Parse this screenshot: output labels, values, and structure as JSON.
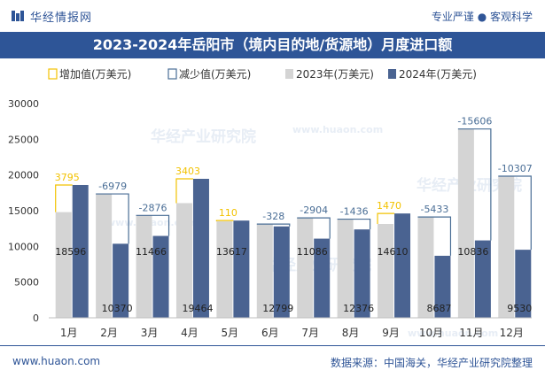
{
  "header": {
    "brand": "华经情报网",
    "slogan": "专业严谨 ● 客观科学"
  },
  "footer": {
    "website": "www.huaon.com",
    "source": "数据来源：中国海关，华经产业研究院整理"
  },
  "watermarks": [
    "华经产业研究院",
    "www.huaon.com"
  ],
  "colors": {
    "increase": "#f2c200",
    "decrease": "#4a6e96",
    "y2023": "#d4d4d4",
    "y2024": "#4a6391",
    "header_band": "#2e5597",
    "brand_text": "#2f5597"
  },
  "chart_data": {
    "type": "bar",
    "title": "2023-2024年岳阳市（境内目的地/货源地）月度进口额",
    "categories": [
      "1月",
      "2月",
      "3月",
      "4月",
      "5月",
      "6月",
      "7月",
      "8月",
      "9月",
      "10月",
      "11月",
      "12月"
    ],
    "series": [
      {
        "name": "2023年(万美元)",
        "values": [
          14801,
          17349,
          14342,
          16061,
          13507,
          13127,
          13990,
          13812,
          13140,
          14120,
          26442,
          19837
        ]
      },
      {
        "name": "2024年(万美元)",
        "values": [
          18596,
          10370,
          11466,
          19464,
          13617,
          12799,
          11086,
          12376,
          14610,
          8687,
          10836,
          9530
        ]
      }
    ],
    "change": {
      "increase_name": "增加值(万美元)",
      "decrease_name": "减少值(万美元)",
      "values": [
        3795,
        -6979,
        -2876,
        3403,
        110,
        -328,
        -2904,
        -1436,
        1470,
        -5433,
        -15606,
        -10307
      ],
      "labels": [
        "3795",
        "-6979",
        "-2876",
        "3403",
        "110",
        "-328",
        "-2904",
        "-1436",
        "1470",
        "-5433",
        "-15606",
        "-10307"
      ]
    },
    "y_ticks": [
      0,
      5000,
      10000,
      15000,
      20000,
      25000,
      30000
    ],
    "y_tick_labels": [
      "0",
      "5000",
      "10000",
      "15000",
      "20000",
      "25000",
      "30000"
    ],
    "ylim": [
      0,
      30000
    ],
    "grid": false,
    "legend_placement": "top"
  }
}
